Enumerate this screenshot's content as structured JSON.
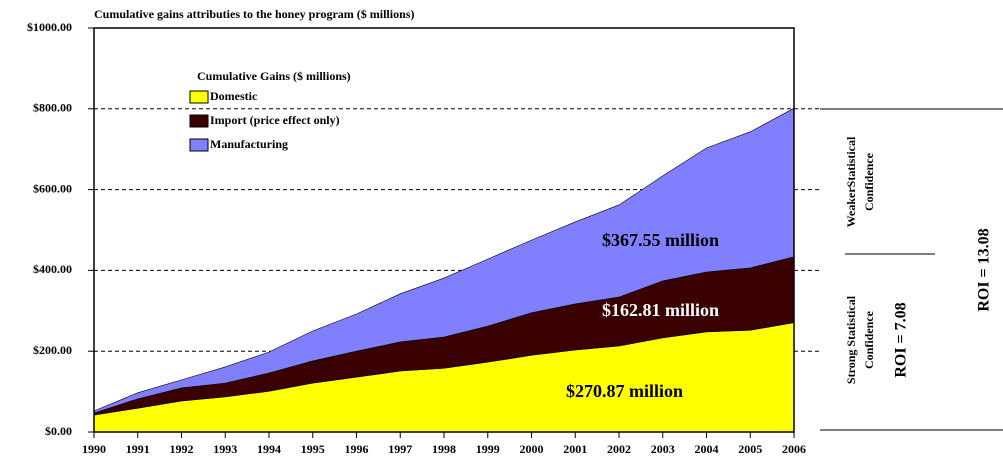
{
  "chart_data": {
    "type": "stacked_area",
    "title": "Cumulative gains attributies to the honey program ($ millions)",
    "legend_title": "Cumulative Gains ($ millions)",
    "x": [
      1990,
      1991,
      1992,
      1993,
      1994,
      1995,
      1996,
      1997,
      1998,
      1999,
      2000,
      2001,
      2002,
      2003,
      2004,
      2005,
      2006
    ],
    "xlim": [
      1990,
      2006
    ],
    "xticks": [
      1990,
      1991,
      1992,
      1993,
      1994,
      1995,
      1996,
      1997,
      1998,
      1999,
      2000,
      2001,
      2002,
      2003,
      2004,
      2005,
      2006
    ],
    "ylim": [
      0,
      1000
    ],
    "yticks": [
      {
        "value": 0,
        "label": "$0.00"
      },
      {
        "value": 200,
        "label": "$200.00"
      },
      {
        "value": 400,
        "label": "$400.00"
      },
      {
        "value": 600,
        "label": "$600.00"
      },
      {
        "value": 800,
        "label": "$800.00"
      },
      {
        "value": 1000,
        "label": "$1000.00"
      }
    ],
    "grid": true,
    "series": [
      {
        "name": "Domestic",
        "color": "#ffff00",
        "values": [
          42,
          59,
          77,
          87,
          101,
          121,
          136,
          151,
          158,
          173,
          190,
          203,
          213,
          233,
          248,
          252,
          270.87
        ]
      },
      {
        "name": "Import (price effect only)",
        "color": "#3a0000",
        "values": [
          5,
          23,
          32,
          34,
          45,
          55,
          64,
          72,
          77,
          89,
          105,
          114,
          121,
          141,
          148,
          154,
          162.81
        ]
      },
      {
        "name": "Manufacturing",
        "color": "#8080ff",
        "values": [
          5,
          15,
          20,
          40,
          52,
          74,
          92,
          119,
          146,
          166,
          180,
          203,
          228,
          260,
          307,
          337,
          367.55
        ]
      }
    ],
    "annotations": [
      "$367.55 million",
      "$162.81  million",
      "$270.87 million"
    ],
    "side_labels": [
      "WeakerStatistical",
      "Confidence",
      "Strong Statistical",
      "Confidence",
      "ROI = 7.08",
      "ROI = 13.08"
    ]
  }
}
